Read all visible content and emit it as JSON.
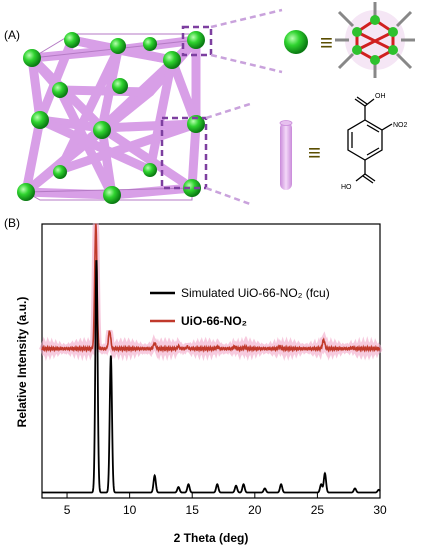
{
  "panel_a": {
    "label": "(A)",
    "equiv_symbol": "≡",
    "linker_labels": {
      "carboxyl_top": "OH",
      "carboxyl_bottom": "HO",
      "nitro": "NO2"
    },
    "colors": {
      "node": "#22cc22",
      "linker": "#d79ae8",
      "dash_box": "#7d3fa0"
    }
  },
  "panel_b": {
    "label": "(B)",
    "chart_data": {
      "type": "line",
      "xlabel": "2 Theta (deg)",
      "ylabel": "Relative Intensity (a.u.)",
      "xlim": [
        3,
        30
      ],
      "x_ticks": [
        5,
        10,
        15,
        20,
        25,
        30
      ],
      "legend_position": "top-right",
      "series": [
        {
          "name": "UiO-66-NO2",
          "legend_text": "UiO-66-NO₂",
          "color": "#c0392b",
          "baseline": 0.545,
          "peaks": [
            {
              "x": 7.3,
              "y": 1.0
            },
            {
              "x": 8.4,
              "y": 0.61
            },
            {
              "x": 12.0,
              "y": 0.565
            },
            {
              "x": 13.9,
              "y": 0.553
            },
            {
              "x": 14.6,
              "y": 0.551
            },
            {
              "x": 17.0,
              "y": 0.551
            },
            {
              "x": 18.4,
              "y": 0.552
            },
            {
              "x": 19.2,
              "y": 0.551
            },
            {
              "x": 22.0,
              "y": 0.552
            },
            {
              "x": 25.5,
              "y": 0.578
            },
            {
              "x": 27.8,
              "y": 0.549
            }
          ]
        },
        {
          "name": "Simulated UiO-66-NO2 (fcu)",
          "legend_text": "Simulated UiO-66-NO₂ (fcu)",
          "color": "#000000",
          "baseline": 0.02,
          "peaks": [
            {
              "x": 7.35,
              "y": 0.87
            },
            {
              "x": 8.5,
              "y": 0.52
            },
            {
              "x": 12.0,
              "y": 0.082
            },
            {
              "x": 13.9,
              "y": 0.04
            },
            {
              "x": 14.7,
              "y": 0.05
            },
            {
              "x": 17.0,
              "y": 0.05
            },
            {
              "x": 18.5,
              "y": 0.045
            },
            {
              "x": 19.1,
              "y": 0.05
            },
            {
              "x": 20.8,
              "y": 0.035
            },
            {
              "x": 22.1,
              "y": 0.05
            },
            {
              "x": 25.6,
              "y": 0.09
            },
            {
              "x": 25.3,
              "y": 0.05
            },
            {
              "x": 28.0,
              "y": 0.035
            },
            {
              "x": 29.9,
              "y": 0.03
            }
          ]
        }
      ]
    }
  }
}
